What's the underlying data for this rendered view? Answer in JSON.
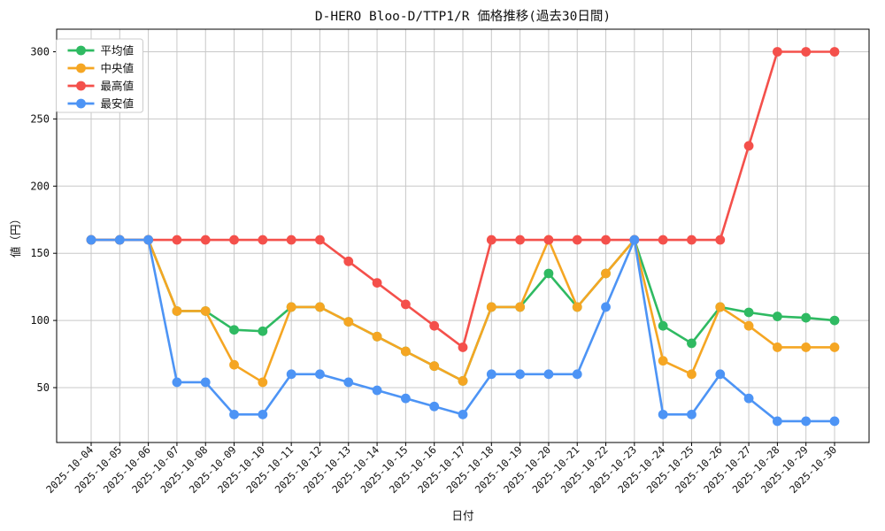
{
  "chart_data": {
    "type": "line",
    "title": "D-HERO Bloo-D/TTP1/R 価格推移(過去30日間)",
    "xlabel": "日付",
    "ylabel": "値（円）",
    "x": [
      "2025-10-04",
      "2025-10-05",
      "2025-10-06",
      "2025-10-07",
      "2025-10-08",
      "2025-10-09",
      "2025-10-10",
      "2025-10-11",
      "2025-10-12",
      "2025-10-13",
      "2025-10-14",
      "2025-10-15",
      "2025-10-16",
      "2025-10-17",
      "2025-10-18",
      "2025-10-19",
      "2025-10-20",
      "2025-10-21",
      "2025-10-22",
      "2025-10-23",
      "2025-10-24",
      "2025-10-25",
      "2025-10-26",
      "2025-10-27",
      "2025-10-28",
      "2025-10-29",
      "2025-10-30"
    ],
    "series": [
      {
        "key": "average",
        "name": "平均値",
        "color": "#2fba62",
        "values": [
          160,
          160,
          160,
          107,
          107,
          93,
          92,
          110,
          110,
          99,
          88,
          77,
          66,
          55,
          110,
          110,
          135,
          110,
          135,
          160,
          96,
          83,
          110,
          106,
          103,
          102,
          100
        ]
      },
      {
        "key": "median",
        "name": "中央値",
        "color": "#f5a623",
        "values": [
          160,
          160,
          160,
          107,
          107,
          67,
          54,
          110,
          110,
          99,
          88,
          77,
          66,
          55,
          110,
          110,
          160,
          110,
          135,
          160,
          70,
          60,
          110,
          96,
          80,
          80,
          80
        ]
      },
      {
        "key": "max",
        "name": "最高値",
        "color": "#f4504b",
        "values": [
          160,
          160,
          160,
          160,
          160,
          160,
          160,
          160,
          160,
          144,
          128,
          112,
          96,
          80,
          160,
          160,
          160,
          160,
          160,
          160,
          160,
          160,
          160,
          230,
          300,
          300,
          300
        ]
      },
      {
        "key": "min",
        "name": "最安値",
        "color": "#4d94f5",
        "values": [
          160,
          160,
          160,
          54,
          54,
          30,
          30,
          60,
          60,
          54,
          48,
          42,
          36,
          30,
          60,
          60,
          60,
          60,
          110,
          160,
          30,
          30,
          60,
          42,
          25,
          25,
          25
        ]
      }
    ],
    "yticks": [
      50,
      100,
      150,
      200,
      250,
      300
    ],
    "ylim": [
      9,
      317
    ],
    "grid": true,
    "legend_position": "upper-left",
    "grid_color": "#c8c8c8",
    "background_color": "#ffffff"
  }
}
